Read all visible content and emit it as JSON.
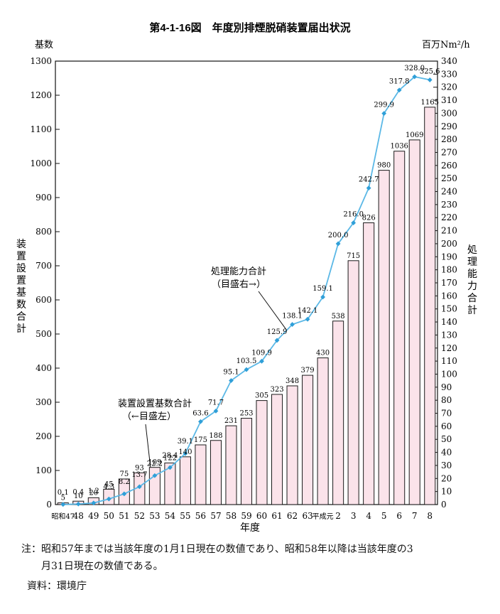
{
  "chart_data": {
    "type": "bar+line",
    "title": "第4-1-16図　年度別排煙脱硝装置届出状況",
    "xlabel": "年度",
    "ylabel_left": "基数",
    "ylabel_right": "百万Nm²/h",
    "ylabel_left_vertical": "装置設置基数合計",
    "ylabel_right_vertical": "処理能力合計",
    "categories": [
      "昭和47",
      "48",
      "49",
      "50",
      "51",
      "52",
      "53",
      "54",
      "55",
      "56",
      "57",
      "58",
      "59",
      "60",
      "61",
      "62",
      "63",
      "平成元",
      "2",
      "3",
      "4",
      "5",
      "6",
      "7",
      "8"
    ],
    "ylim_left": [
      0,
      1300
    ],
    "ylim_right": [
      0,
      340
    ],
    "left_ticks": [
      0,
      100,
      200,
      300,
      400,
      500,
      600,
      700,
      800,
      900,
      1000,
      1100,
      1200,
      1300
    ],
    "right_ticks": [
      0,
      10,
      20,
      30,
      40,
      50,
      60,
      70,
      80,
      90,
      100,
      110,
      120,
      130,
      140,
      150,
      160,
      170,
      180,
      190,
      200,
      210,
      220,
      230,
      240,
      250,
      260,
      270,
      280,
      290,
      300,
      310,
      320,
      330,
      340
    ],
    "series": [
      {
        "name": "装置設置基数合計",
        "axis": "left",
        "kind": "bar",
        "values": [
          5,
          10,
          20,
          45,
          75,
          93,
          109,
          122,
          140,
          175,
          188,
          231,
          253,
          305,
          323,
          348,
          379,
          430,
          538,
          715,
          826,
          980,
          1036,
          1069,
          1165
        ],
        "labels": [
          "5",
          "10",
          "20",
          "45",
          "75",
          "93",
          "109",
          "122",
          "140",
          "175",
          "188",
          "231",
          "253",
          "305",
          "323",
          "348",
          "379",
          "430",
          "538",
          "715",
          "826",
          "980",
          "1036",
          "1069",
          "1165"
        ]
      },
      {
        "name": "処理能力合計",
        "axis": "right",
        "kind": "line",
        "values": [
          0.1,
          0.4,
          1.2,
          4.3,
          8.2,
          13.7,
          22.2,
          28.4,
          39.1,
          63.6,
          71.7,
          95.1,
          103.5,
          109.9,
          125.9,
          138.1,
          142.1,
          159.1,
          200.0,
          216.0,
          242.7,
          299.9,
          317.8,
          328.0,
          325.6
        ],
        "labels": [
          "0.1",
          "0.4",
          "1.2",
          "4.3",
          "8.2",
          "13.7",
          "22.2",
          "28.4",
          "39.1",
          "63.6",
          "71.7",
          "95.1",
          "103.5",
          "109.9",
          "125.9",
          "138.1",
          "142.1",
          "159.1",
          "200.0",
          "216.0",
          "242.7",
          "299.9",
          "317.8",
          "328.0",
          "325.6"
        ]
      }
    ],
    "annotations": [
      {
        "text": "処理能力合計",
        "text2": "（目盛右→）"
      },
      {
        "text": "装置設置基数合計",
        "text2": "（←目盛左）"
      }
    ],
    "colors": {
      "bar_fill": "#fbe3ea",
      "bar_stroke": "#1a1a1a",
      "line": "#5bb8e6",
      "marker": "#2f9fd8"
    }
  },
  "footer": {
    "note_line1": "注：昭和57年までは当該年度の1月1日現在の数値であり、昭和58年以降は当該年度の3",
    "note_line2": "月31日現在の数値である。",
    "source": "資料：環境庁"
  }
}
